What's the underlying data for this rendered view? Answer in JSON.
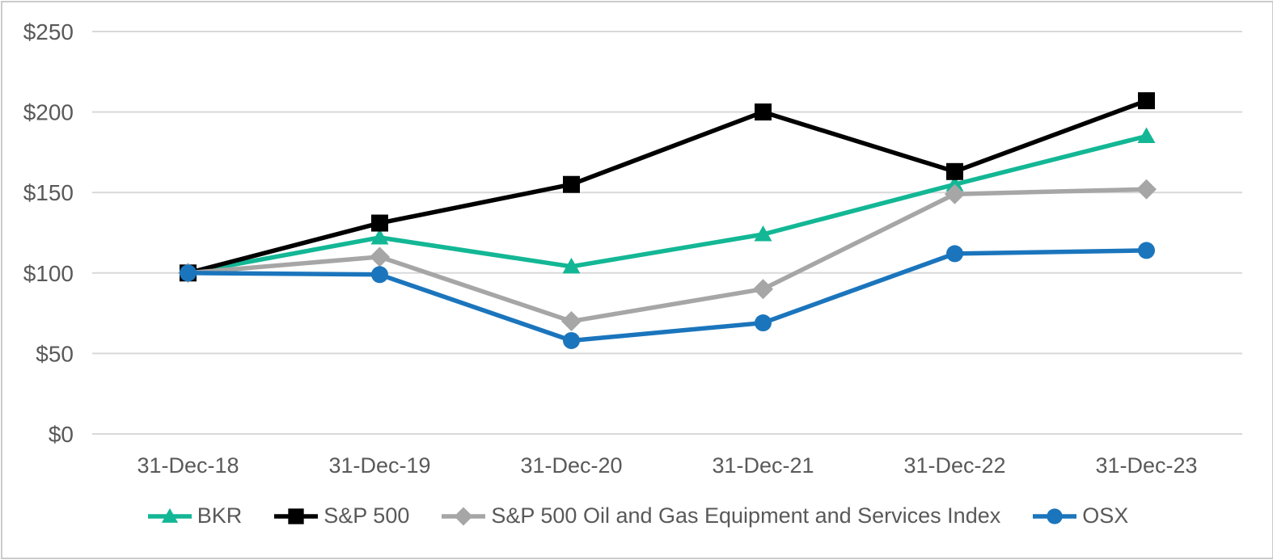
{
  "chart_data": {
    "type": "line",
    "title": "",
    "x": [
      "31-Dec-18",
      "31-Dec-19",
      "31-Dec-20",
      "31-Dec-21",
      "31-Dec-22",
      "31-Dec-23"
    ],
    "series": [
      {
        "name": "BKR",
        "color": "#13B795",
        "marker": "triangle",
        "values": [
          100,
          122,
          104,
          124,
          155,
          185
        ]
      },
      {
        "name": "S&P 500",
        "color": "#000000",
        "marker": "square",
        "values": [
          100,
          131,
          155,
          200,
          163,
          207
        ]
      },
      {
        "name": "S&P 500 Oil and Gas Equipment and Services Index",
        "color": "#A6A6A6",
        "marker": "diamond",
        "values": [
          100,
          110,
          70,
          90,
          149,
          152
        ]
      },
      {
        "name": "OSX",
        "color": "#1B75BC",
        "marker": "circle",
        "values": [
          100,
          99,
          58,
          69,
          112,
          114
        ]
      }
    ],
    "y_ticks": [
      0,
      50,
      100,
      150,
      200,
      250
    ],
    "y_tick_prefix": "$",
    "ylim": [
      0,
      250
    ],
    "grid": true,
    "legend_position": "bottom",
    "axis_text_color": "#595959",
    "gridline_color": "#D9D9D9",
    "frame_border_color": "#CBCBCB",
    "background": "#FFFFFF"
  }
}
